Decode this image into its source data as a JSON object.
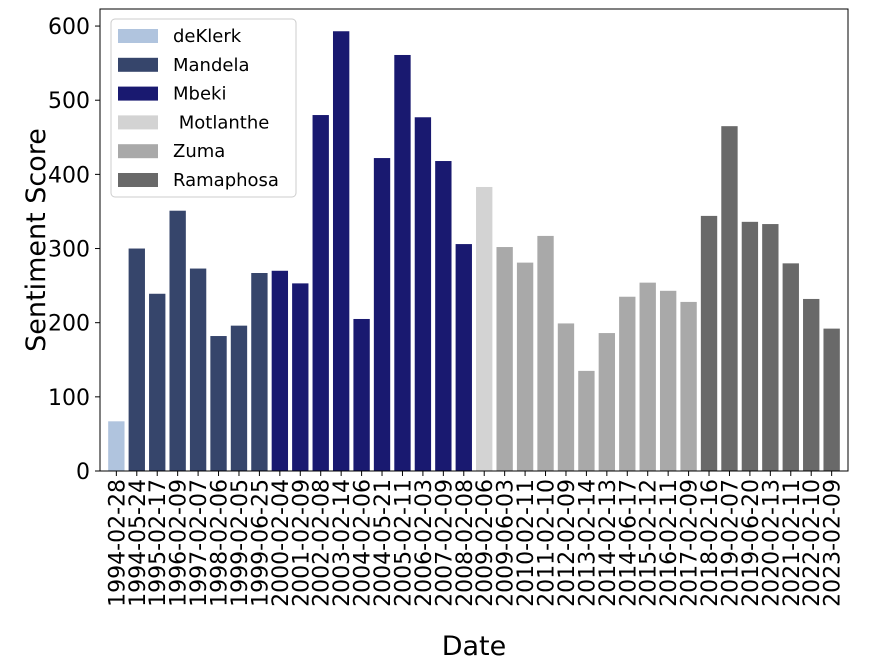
{
  "chart_data": {
    "type": "bar",
    "xlabel": "Date",
    "ylabel": "Sentiment Score",
    "ylim": [
      0,
      623
    ],
    "yticks": [
      0,
      100,
      200,
      300,
      400,
      500,
      600
    ],
    "legend_position": "top-left",
    "grid": false,
    "presidents": [
      {
        "name": "deKlerk",
        "color": "#b0c4de"
      },
      {
        "name": "Mandela",
        "color": "#36456b"
      },
      {
        "name": "Mbeki",
        "color": "#191970"
      },
      {
        "name": " Motlanthe",
        "color": "#d3d3d3"
      },
      {
        "name": "Zuma",
        "color": "#a9a9a9"
      },
      {
        "name": "Ramaphosa",
        "color": "#696969"
      }
    ],
    "bars": [
      {
        "date": "1994-02-28",
        "value": 67,
        "president": 0
      },
      {
        "date": "1994-05-24",
        "value": 300,
        "president": 1
      },
      {
        "date": "1995-02-17",
        "value": 239,
        "president": 1
      },
      {
        "date": "1996-02-09",
        "value": 351,
        "president": 1
      },
      {
        "date": "1997-02-07",
        "value": 273,
        "president": 1
      },
      {
        "date": "1998-02-06",
        "value": 182,
        "president": 1
      },
      {
        "date": "1999-02-05",
        "value": 196,
        "president": 1
      },
      {
        "date": "1999-06-25",
        "value": 267,
        "president": 1
      },
      {
        "date": "2000-02-04",
        "value": 270,
        "president": 2
      },
      {
        "date": "2001-02-09",
        "value": 253,
        "president": 2
      },
      {
        "date": "2002-02-08",
        "value": 480,
        "president": 2
      },
      {
        "date": "2003-02-14",
        "value": 593,
        "president": 2
      },
      {
        "date": "2004-02-06",
        "value": 205,
        "president": 2
      },
      {
        "date": "2004-05-21",
        "value": 422,
        "president": 2
      },
      {
        "date": "2005-02-11",
        "value": 561,
        "president": 2
      },
      {
        "date": "2006-02-03",
        "value": 477,
        "president": 2
      },
      {
        "date": "2007-02-09",
        "value": 418,
        "president": 2
      },
      {
        "date": "2008-02-08",
        "value": 306,
        "president": 2
      },
      {
        "date": "2009-02-06",
        "value": 383,
        "president": 3
      },
      {
        "date": "2009-06-03",
        "value": 302,
        "president": 4
      },
      {
        "date": "2010-02-11",
        "value": 281,
        "president": 4
      },
      {
        "date": "2011-02-10",
        "value": 317,
        "president": 4
      },
      {
        "date": "2012-02-09",
        "value": 199,
        "president": 4
      },
      {
        "date": "2013-02-14",
        "value": 135,
        "president": 4
      },
      {
        "date": "2014-02-13",
        "value": 186,
        "president": 4
      },
      {
        "date": "2014-06-17",
        "value": 235,
        "president": 4
      },
      {
        "date": "2015-02-12",
        "value": 254,
        "president": 4
      },
      {
        "date": "2016-02-11",
        "value": 243,
        "president": 4
      },
      {
        "date": "2017-02-09",
        "value": 228,
        "president": 4
      },
      {
        "date": "2018-02-16",
        "value": 344,
        "president": 5
      },
      {
        "date": "2019-02-07",
        "value": 465,
        "president": 5
      },
      {
        "date": "2019-06-20",
        "value": 336,
        "president": 5
      },
      {
        "date": "2020-02-13",
        "value": 333,
        "president": 5
      },
      {
        "date": "2021-02-11",
        "value": 280,
        "president": 5
      },
      {
        "date": "2022-02-10",
        "value": 232,
        "president": 5
      },
      {
        "date": "2023-02-09",
        "value": 192,
        "president": 5
      }
    ]
  }
}
